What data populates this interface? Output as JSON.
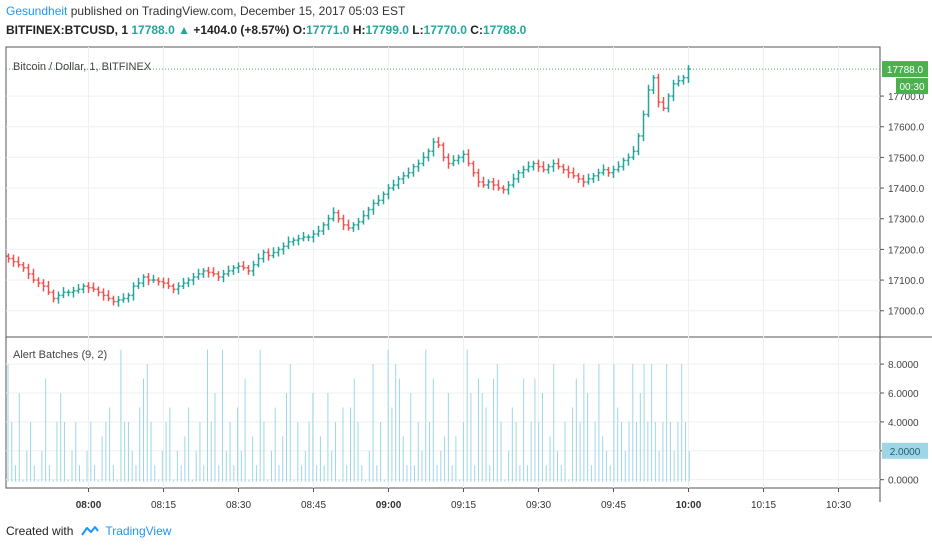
{
  "header": {
    "author": "Gesundheit",
    "published_text": "published on TradingView.com, December 15, 2017 05:03 EST",
    "symbol": "BITFINEX:BTCUSD, 1",
    "last": "17788.0",
    "change_arrow": "▲",
    "change": "+1404.0 (+8.57%)",
    "o_label": "O:",
    "o_value": "17771.0",
    "h_label": "H:",
    "h_value": "17799.0",
    "l_label": "L:",
    "l_value": "17770.0",
    "c_label": "C:",
    "c_value": "17788.0"
  },
  "footer": {
    "created_with": "Created with",
    "brand": "TradingView"
  },
  "colors": {
    "up": "#26a69a",
    "down": "#ef5350",
    "hist": "#9fd6e6",
    "accent": "#2196f3",
    "last_tag": "#4caf50"
  },
  "chart_data": [
    {
      "type": "ohlc",
      "title": "Bitcoin / Dollar, 1, BITFINEX",
      "ylim": [
        16960,
        17860
      ],
      "y_ticks": [
        "17000.0",
        "17100.0",
        "17200.0",
        "17300.0",
        "17400.0",
        "17500.0",
        "17600.0",
        "17700.0"
      ],
      "last_price": "17788.0",
      "countdown": "00:30",
      "x_ticks": [
        "08:00",
        "08:15",
        "08:30",
        "08:45",
        "09:00",
        "09:15",
        "09:30",
        "09:45",
        "10:00",
        "10:15",
        "10:30"
      ],
      "bold_ticks": [
        "08:00",
        "09:00",
        "10:00"
      ],
      "t_start": "07:44",
      "closes": [
        17170,
        17160,
        17150,
        17140,
        17120,
        17100,
        17090,
        17080,
        17060,
        17040,
        17050,
        17060,
        17060,
        17065,
        17070,
        17080,
        17075,
        17070,
        17060,
        17050,
        17040,
        17030,
        17035,
        17040,
        17050,
        17080,
        17090,
        17110,
        17100,
        17100,
        17095,
        17090,
        17080,
        17070,
        17080,
        17090,
        17100,
        17110,
        17120,
        17130,
        17125,
        17120,
        17110,
        17120,
        17130,
        17140,
        17145,
        17140,
        17130,
        17150,
        17170,
        17190,
        17180,
        17190,
        17200,
        17210,
        17225,
        17230,
        17235,
        17240,
        17240,
        17250,
        17260,
        17280,
        17300,
        17320,
        17300,
        17280,
        17270,
        17280,
        17290,
        17310,
        17330,
        17350,
        17360,
        17380,
        17400,
        17410,
        17430,
        17440,
        17450,
        17470,
        17480,
        17500,
        17520,
        17550,
        17540,
        17500,
        17480,
        17490,
        17500,
        17510,
        17480,
        17450,
        17420,
        17410,
        17420,
        17410,
        17400,
        17395,
        17410,
        17430,
        17450,
        17460,
        17470,
        17480,
        17470,
        17460,
        17470,
        17480,
        17470,
        17460,
        17450,
        17440,
        17430,
        17420,
        17430,
        17440,
        17450,
        17460,
        17450,
        17460,
        17470,
        17490,
        17500,
        17520,
        17570,
        17640,
        17720,
        17760,
        17680,
        17660,
        17700,
        17740,
        17750,
        17760,
        17788
      ],
      "indicator": {
        "title": "Alert Batches (9, 2)",
        "ylim": [
          -0.3,
          9.6
        ],
        "y_ticks": [
          "0.0000",
          "2.0000",
          "4.0000",
          "6.0000",
          "8.0000"
        ],
        "current": "2.0000",
        "values": [
          8,
          4,
          1,
          6,
          0,
          2,
          4,
          1,
          0,
          2,
          7,
          1,
          0,
          4,
          6,
          4,
          0,
          2,
          4,
          1,
          0,
          2,
          4,
          1,
          0,
          3,
          4,
          5,
          1,
          0,
          9,
          4,
          4,
          2,
          1,
          5,
          7,
          8,
          4,
          1,
          0,
          2,
          4,
          5,
          0,
          2,
          1,
          3,
          5,
          0,
          2,
          4,
          1,
          9,
          4,
          6,
          1,
          9,
          2,
          4,
          1,
          5,
          2,
          7,
          0,
          3,
          1,
          9,
          4,
          0,
          2,
          5,
          1,
          3,
          6,
          8,
          0,
          4,
          1,
          2,
          4,
          6,
          1,
          3,
          1,
          6,
          2,
          4,
          0,
          5,
          1,
          5,
          7,
          4,
          1,
          0,
          2,
          8,
          1,
          4,
          0,
          9,
          5,
          8,
          7,
          3,
          1,
          6,
          1,
          4,
          2,
          9,
          4,
          7,
          1,
          2,
          3,
          6,
          1,
          3,
          0,
          4,
          9,
          6,
          1,
          7,
          6,
          5,
          1,
          7,
          8,
          4,
          0,
          2,
          5,
          4,
          1,
          7,
          1,
          4,
          7,
          4,
          6,
          1,
          3,
          8,
          2,
          1,
          4,
          0,
          5,
          7,
          4,
          8,
          6,
          1,
          4,
          8,
          3,
          2,
          1,
          8,
          5,
          4,
          2,
          4,
          8,
          4,
          6,
          8,
          4,
          8,
          4,
          2,
          4,
          8,
          4,
          2,
          4,
          8,
          4,
          2
        ]
      }
    }
  ]
}
